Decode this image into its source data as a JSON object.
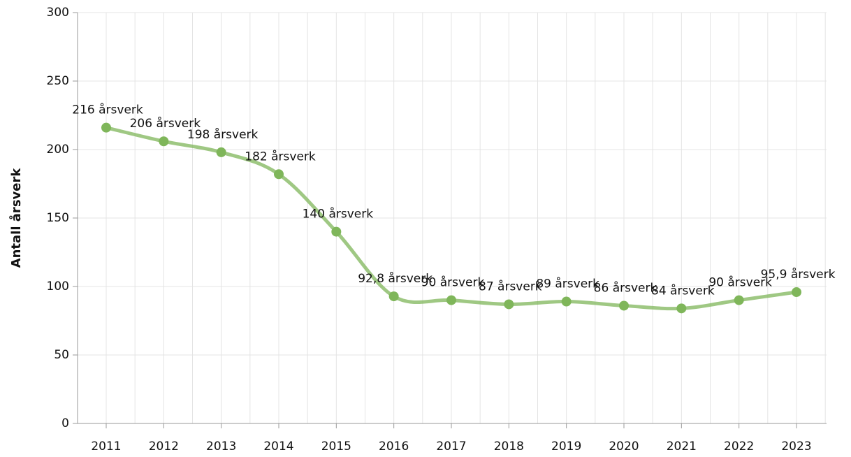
{
  "chart_data": {
    "type": "line",
    "y_label": "Antall årsverk",
    "categories": [
      "2011",
      "2012",
      "2013",
      "2014",
      "2015",
      "2016",
      "2017",
      "2018",
      "2019",
      "2020",
      "2021",
      "2022",
      "2023"
    ],
    "series": [
      {
        "name": "Antall årsverk",
        "color": "#7fb65a",
        "values": [
          216,
          206,
          198,
          182,
          140,
          92.8,
          90,
          87,
          89,
          86,
          84,
          90,
          95.9
        ],
        "value_labels": [
          "216 årsverk",
          "206 årsverk",
          "198 årsverk",
          "182 årsverk",
          "140 årsverk",
          "92,8 årsverk",
          "90 årsverk",
          "87 årsverk",
          "89 årsverk",
          "86 årsverk",
          "84 årsverk",
          "90 årsverk",
          "95,9 årsverk"
        ]
      }
    ],
    "ylim": [
      0,
      300
    ],
    "yticks": [
      0,
      50,
      100,
      150,
      200,
      250,
      300
    ],
    "grid": true
  }
}
